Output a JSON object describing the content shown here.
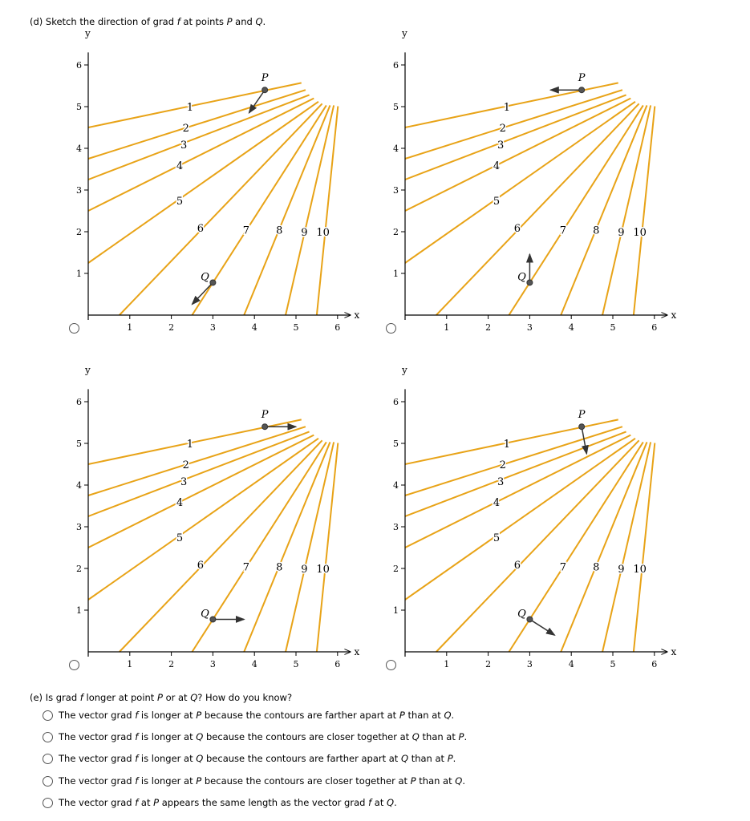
{
  "part_d": {
    "prompt": [
      {
        "t": "(d) Sketch the direction of grad "
      },
      {
        "t": "f",
        "i": true
      },
      {
        "t": " at points "
      },
      {
        "t": "P",
        "i": true
      },
      {
        "t": " and "
      },
      {
        "t": "Q",
        "i": true
      },
      {
        "t": "."
      }
    ],
    "axis_labels": {
      "x": "x",
      "y": "y"
    },
    "x_ticks": [
      "1",
      "2",
      "3",
      "4",
      "5",
      "6"
    ],
    "y_ticks": [
      "1",
      "2",
      "3",
      "4",
      "5",
      "6"
    ],
    "contour_color": "#E8A317",
    "contours": [
      {
        "label": "1",
        "from": [
          0,
          4.5
        ],
        "to": [
          5.13,
          5.57
        ],
        "label_at": [
          2.45,
          5.0
        ]
      },
      {
        "label": "2",
        "from": [
          0,
          3.75
        ],
        "to": [
          5.23,
          5.4
        ],
        "label_at": [
          2.35,
          4.5
        ]
      },
      {
        "label": "3",
        "from": [
          0,
          3.25
        ],
        "to": [
          5.32,
          5.28
        ],
        "label_at": [
          2.3,
          4.1
        ]
      },
      {
        "label": "4",
        "from": [
          0,
          2.5
        ],
        "to": [
          5.43,
          5.2
        ],
        "label_at": [
          2.2,
          3.6
        ]
      },
      {
        "label": "5",
        "from": [
          0,
          1.25
        ],
        "to": [
          5.54,
          5.12
        ],
        "label_at": [
          2.2,
          2.75
        ]
      },
      {
        "label": "6",
        "from": [
          0.75,
          0
        ],
        "to": [
          5.63,
          5.07
        ],
        "label_at": [
          2.7,
          2.1
        ]
      },
      {
        "label": "7",
        "from": [
          2.5,
          0
        ],
        "to": [
          5.73,
          5.03
        ],
        "label_at": [
          3.8,
          2.05
        ]
      },
      {
        "label": "8",
        "from": [
          3.75,
          0
        ],
        "to": [
          5.82,
          5.03
        ],
        "label_at": [
          4.6,
          2.05
        ]
      },
      {
        "label": "9",
        "from": [
          4.75,
          0
        ],
        "to": [
          5.91,
          5.03
        ],
        "label_at": [
          5.2,
          2.0
        ]
      },
      {
        "label": "10",
        "from": [
          5.5,
          0
        ],
        "to": [
          6.01,
          5.01
        ],
        "label_at": [
          5.65,
          2.0
        ]
      }
    ],
    "points": {
      "P": {
        "label": "P",
        "at": [
          4.25,
          5.4
        ]
      },
      "Q": {
        "label": "Q",
        "at": [
          3.0,
          0.78
        ]
      }
    },
    "options": [
      {
        "P_vec": [
          -0.38,
          -0.55
        ],
        "Q_vec": [
          -0.5,
          -0.52
        ]
      },
      {
        "P_vec": [
          -0.75,
          0
        ],
        "Q_vec": [
          0,
          0.68
        ]
      },
      {
        "P_vec": [
          0.75,
          0
        ],
        "Q_vec": [
          0.75,
          0
        ]
      },
      {
        "P_vec": [
          0.12,
          -0.65
        ],
        "Q_vec": [
          0.6,
          -0.38
        ]
      }
    ]
  },
  "part_e": {
    "prompt": [
      {
        "t": "(e) Is grad "
      },
      {
        "t": "f",
        "i": true
      },
      {
        "t": " longer at point "
      },
      {
        "t": "P",
        "i": true
      },
      {
        "t": " or at "
      },
      {
        "t": "Q",
        "i": true
      },
      {
        "t": "? How do you know?"
      }
    ],
    "options": [
      [
        {
          "t": "The vector grad "
        },
        {
          "t": "f",
          "i": true
        },
        {
          "t": " is longer at "
        },
        {
          "t": "P",
          "i": true
        },
        {
          "t": " because the contours are farther apart at "
        },
        {
          "t": "P",
          "i": true
        },
        {
          "t": " than at "
        },
        {
          "t": "Q",
          "i": true
        },
        {
          "t": "."
        }
      ],
      [
        {
          "t": "The vector grad "
        },
        {
          "t": "f",
          "i": true
        },
        {
          "t": " is longer at "
        },
        {
          "t": "Q",
          "i": true
        },
        {
          "t": " because the contours are closer together at "
        },
        {
          "t": "Q",
          "i": true
        },
        {
          "t": " than at "
        },
        {
          "t": "P",
          "i": true
        },
        {
          "t": "."
        }
      ],
      [
        {
          "t": "The vector grad "
        },
        {
          "t": "f",
          "i": true
        },
        {
          "t": " is longer at "
        },
        {
          "t": "Q",
          "i": true
        },
        {
          "t": " because the contours are farther apart at "
        },
        {
          "t": "Q",
          "i": true
        },
        {
          "t": " than at "
        },
        {
          "t": "P",
          "i": true
        },
        {
          "t": "."
        }
      ],
      [
        {
          "t": "The vector grad "
        },
        {
          "t": "f",
          "i": true
        },
        {
          "t": " is longer at "
        },
        {
          "t": "P",
          "i": true
        },
        {
          "t": " because the contours are closer together at "
        },
        {
          "t": "P",
          "i": true
        },
        {
          "t": " than at "
        },
        {
          "t": "Q",
          "i": true
        },
        {
          "t": "."
        }
      ],
      [
        {
          "t": "The vector grad "
        },
        {
          "t": "f",
          "i": true
        },
        {
          "t": " at "
        },
        {
          "t": "P",
          "i": true
        },
        {
          "t": " appears the same length as the vector grad "
        },
        {
          "t": "f",
          "i": true
        },
        {
          "t": " at "
        },
        {
          "t": "Q",
          "i": true
        },
        {
          "t": "."
        }
      ]
    ]
  }
}
